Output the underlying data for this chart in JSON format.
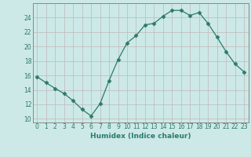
{
  "x": [
    0,
    1,
    2,
    3,
    4,
    5,
    6,
    7,
    8,
    9,
    10,
    11,
    12,
    13,
    14,
    15,
    16,
    17,
    18,
    19,
    20,
    21,
    22,
    23
  ],
  "y": [
    15.8,
    15.0,
    14.2,
    13.5,
    12.5,
    11.3,
    10.4,
    12.1,
    15.3,
    18.2,
    20.5,
    21.5,
    23.0,
    23.2,
    24.2,
    25.0,
    25.0,
    24.3,
    24.7,
    23.2,
    21.3,
    19.3,
    17.6,
    16.5
  ],
  "xlabel": "Humidex (Indice chaleur)",
  "ylabel": "",
  "xlim": [
    -0.5,
    23.5
  ],
  "ylim": [
    9.5,
    26.0
  ],
  "yticks": [
    10,
    12,
    14,
    16,
    18,
    20,
    22,
    24
  ],
  "xticks": [
    0,
    1,
    2,
    3,
    4,
    5,
    6,
    7,
    8,
    9,
    10,
    11,
    12,
    13,
    14,
    15,
    16,
    17,
    18,
    19,
    20,
    21,
    22,
    23
  ],
  "line_color": "#2d7a6a",
  "marker": "D",
  "marker_size": 2.5,
  "bg_color": "#cce9e7",
  "grid_color": "#c0b8b8",
  "label_fontsize": 6.5,
  "tick_fontsize": 5.5
}
